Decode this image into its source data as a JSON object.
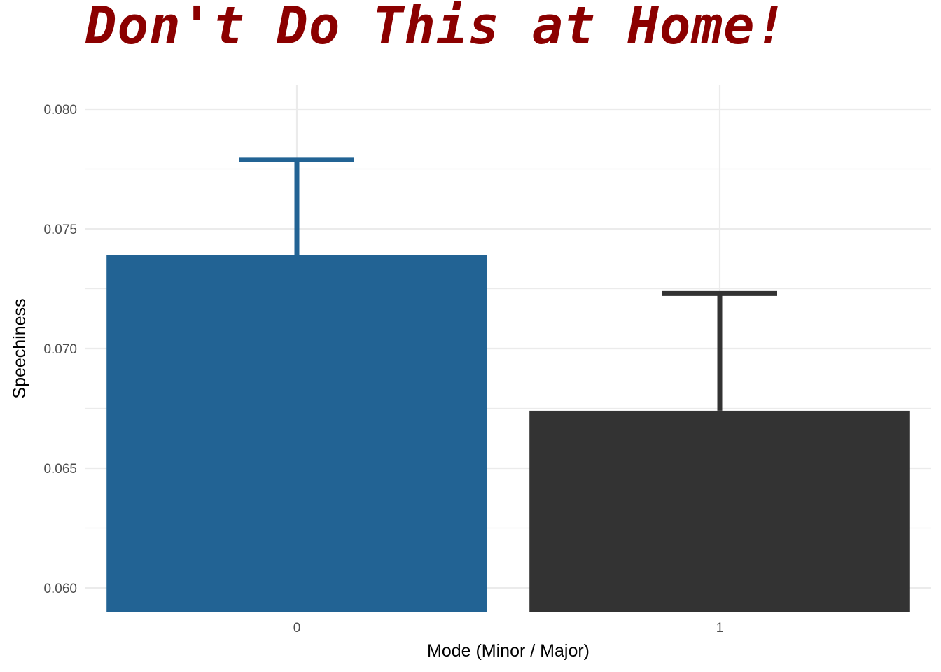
{
  "chart_data": {
    "type": "bar",
    "title": "Don't Do This at Home!",
    "xlabel": "Mode (Minor / Major)",
    "ylabel": "Speechiness",
    "categories": [
      "0",
      "1"
    ],
    "values": [
      0.0739,
      0.0674
    ],
    "error_upper": [
      0.0779,
      0.0723
    ],
    "ylim": [
      0.059,
      0.081
    ],
    "yticks": [
      0.06,
      0.065,
      0.07,
      0.075,
      0.08
    ],
    "ytick_labels": [
      "0.060",
      "0.065",
      "0.070",
      "0.075",
      "0.080"
    ],
    "colors": [
      "#226394",
      "#333333"
    ],
    "title_color": "#8b0000",
    "grid": true,
    "legend": "none"
  }
}
